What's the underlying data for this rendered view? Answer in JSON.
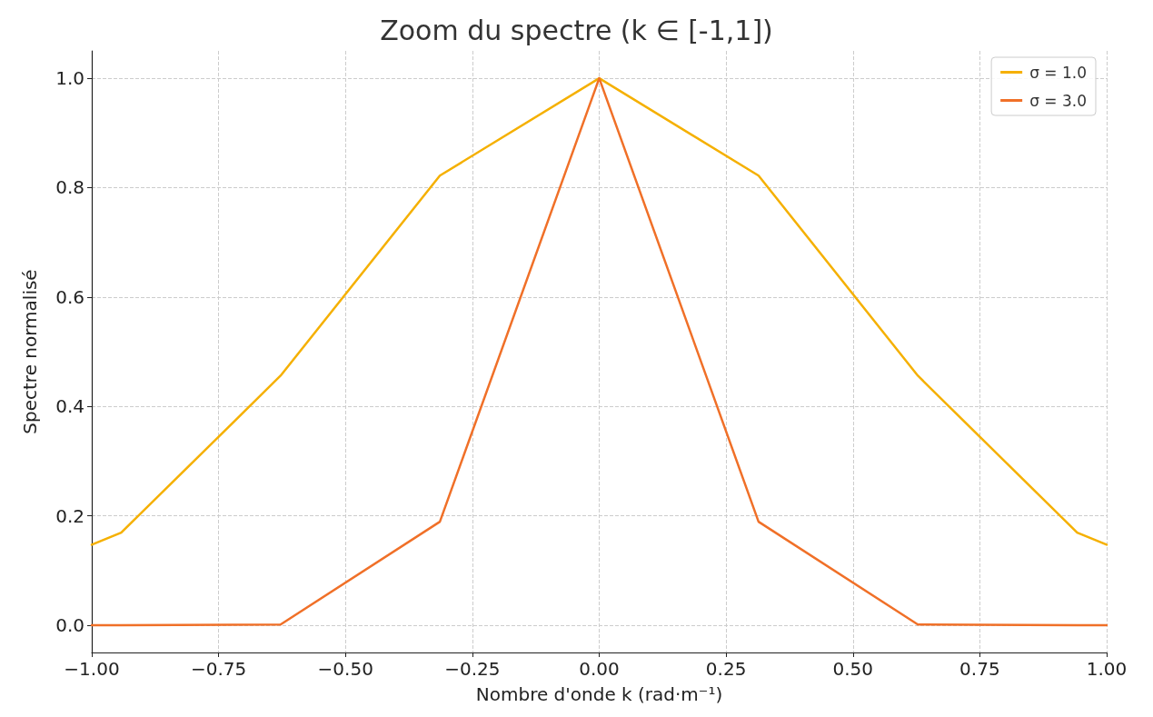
{
  "chart_data": {
    "type": "line",
    "title": "Zoom du spectre (k ∈ [-1,1])",
    "xlabel": "Nombre d'onde k (rad·m⁻¹)",
    "ylabel": "Spectre normalisé",
    "x": [
      -1,
      -0.942,
      -0.628,
      -0.314,
      0,
      0.314,
      0.628,
      0.942,
      1
    ],
    "series": [
      {
        "name": "σ = 1.0",
        "color": "#f5b000",
        "values": [
          0.147,
          0.169,
          0.456,
          0.822,
          1.0,
          0.822,
          0.456,
          0.169,
          0.147
        ]
      },
      {
        "name": "σ = 3.0",
        "color": "#f07028",
        "values": [
          0.0,
          0.0,
          0.001,
          0.189,
          1.0,
          0.189,
          0.001,
          0.0,
          0.0
        ]
      }
    ],
    "xlim": [
      -1,
      1
    ],
    "xticks": [
      {
        "value": -1,
        "label": "−1.00"
      },
      {
        "value": -0.75,
        "label": "−0.75"
      },
      {
        "value": -0.5,
        "label": "−0.50"
      },
      {
        "value": -0.25,
        "label": "−0.25"
      },
      {
        "value": 0,
        "label": "0.00"
      },
      {
        "value": 0.25,
        "label": "0.25"
      },
      {
        "value": 0.5,
        "label": "0.50"
      },
      {
        "value": 0.75,
        "label": "0.75"
      },
      {
        "value": 1,
        "label": "1.00"
      }
    ],
    "ylim": [
      -0.05,
      1.05
    ],
    "yticks": [
      {
        "value": 0,
        "label": "0.0"
      },
      {
        "value": 0.2,
        "label": "0.2"
      },
      {
        "value": 0.4,
        "label": "0.4"
      },
      {
        "value": 0.6,
        "label": "0.6"
      },
      {
        "value": 0.8,
        "label": "0.8"
      },
      {
        "value": 1,
        "label": "1.0"
      }
    ],
    "grid": true,
    "legend": "top right",
    "marker": "none",
    "line_style": "solid"
  }
}
